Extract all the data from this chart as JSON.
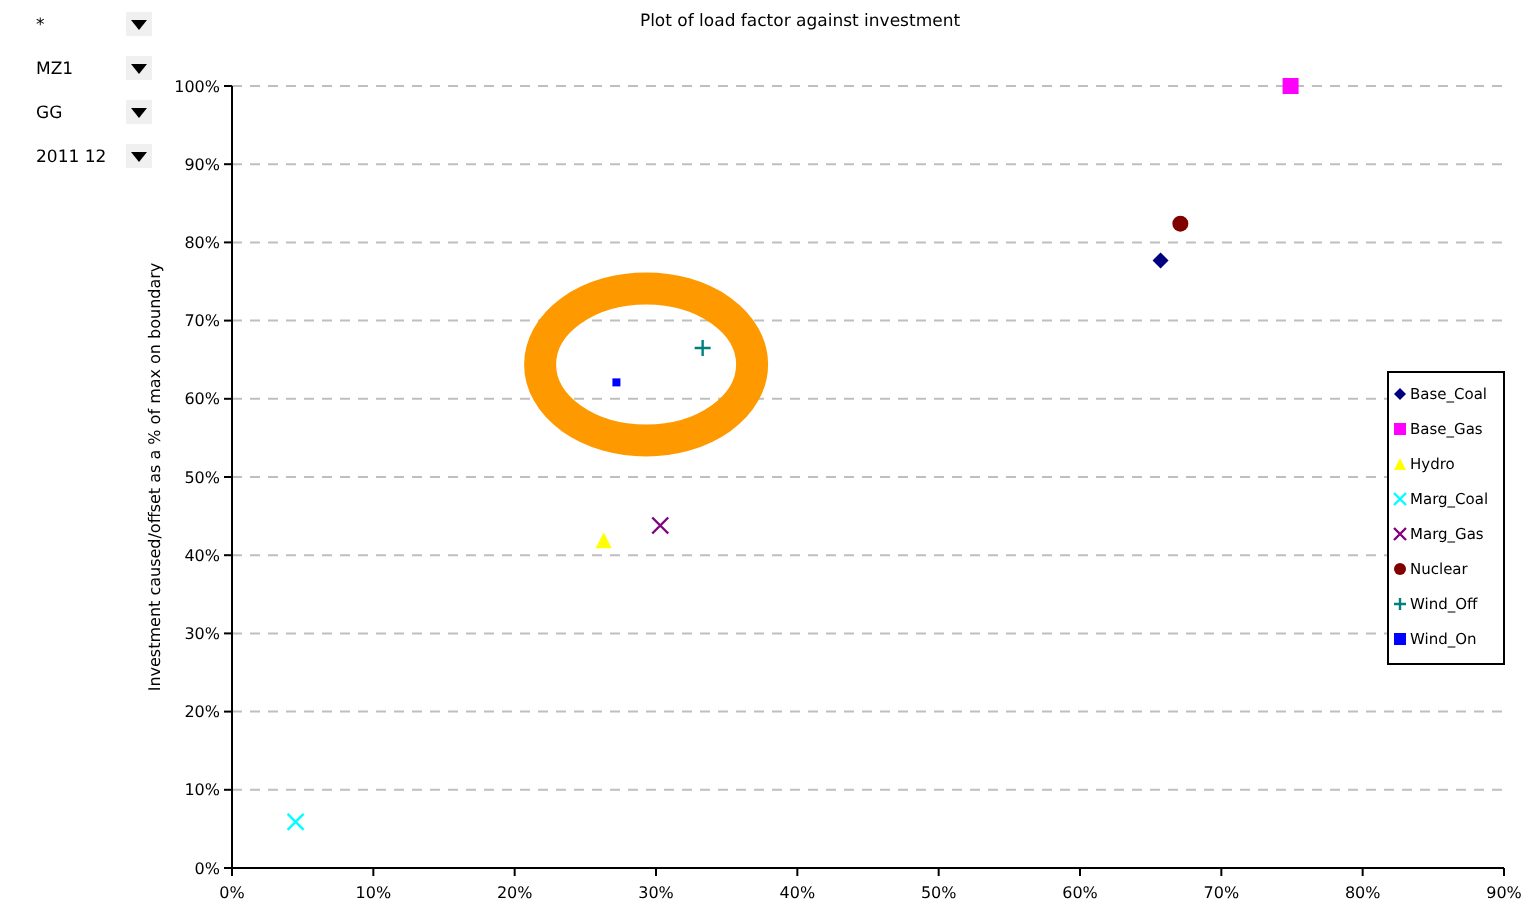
{
  "chart_data": {
    "type": "scatter",
    "title": "Plot of load factor against investment",
    "ylabel": "Investment caused/offset as a % of max on boundary",
    "annotations": [
      "*",
      "MZ1",
      "GG",
      "2011 12"
    ],
    "xlim": [
      0,
      0.9
    ],
    "xticks": [
      {
        "value": 0,
        "label": "0%"
      },
      {
        "value": 0.1,
        "label": "10%"
      },
      {
        "value": 0.2,
        "label": "20%"
      },
      {
        "value": 0.3,
        "label": "30%"
      },
      {
        "value": 0.4,
        "label": "40%"
      },
      {
        "value": 0.5,
        "label": "50%"
      },
      {
        "value": 0.6,
        "label": "60%"
      },
      {
        "value": 0.7,
        "label": "70%"
      },
      {
        "value": 0.8,
        "label": "80%"
      },
      {
        "value": 0.9,
        "label": "90%"
      }
    ],
    "ylim": [
      0,
      1
    ],
    "yticks": [
      {
        "value": 0,
        "label": "0%"
      },
      {
        "value": 0.1,
        "label": "10%"
      },
      {
        "value": 0.2,
        "label": "20%"
      },
      {
        "value": 0.3,
        "label": "30%"
      },
      {
        "value": 0.4,
        "label": "40%"
      },
      {
        "value": 0.5,
        "label": "50%"
      },
      {
        "value": 0.6,
        "label": "60%"
      },
      {
        "value": 0.7,
        "label": "70%"
      },
      {
        "value": 0.8,
        "label": "80%"
      },
      {
        "value": 0.9,
        "label": "90%"
      },
      {
        "value": 1,
        "label": "100%"
      }
    ],
    "grid": "y",
    "legend": "right",
    "series": [
      {
        "name": "Base_Coal",
        "color": "#000080",
        "marker": "diamond",
        "x": [
          0.657
        ],
        "values": [
          0.777
        ]
      },
      {
        "name": "Base_Gas",
        "color": "#ff00ff",
        "marker": "square",
        "x": [
          0.749
        ],
        "values": [
          1.0
        ]
      },
      {
        "name": "Hydro",
        "color": "#ffff00",
        "marker": "triangle",
        "x": [
          0.263
        ],
        "values": [
          0.419
        ]
      },
      {
        "name": "Marg_Coal",
        "color": "#00ffff",
        "marker": "cross",
        "x": [
          0.045
        ],
        "values": [
          0.059
        ]
      },
      {
        "name": "Marg_Gas",
        "color": "#800080",
        "marker": "cross",
        "x": [
          0.303
        ],
        "values": [
          0.438
        ]
      },
      {
        "name": "Nuclear",
        "color": "#800000",
        "marker": "circle",
        "x": [
          0.671
        ],
        "values": [
          0.824
        ]
      },
      {
        "name": "Wind_Off",
        "color": "#008080",
        "marker": "plus",
        "x": [
          0.333
        ],
        "values": [
          0.665
        ]
      },
      {
        "name": "Wind_On",
        "color": "#0000ff",
        "marker": "square",
        "x": [
          0.272
        ],
        "values": [
          0.621
        ]
      }
    ]
  }
}
